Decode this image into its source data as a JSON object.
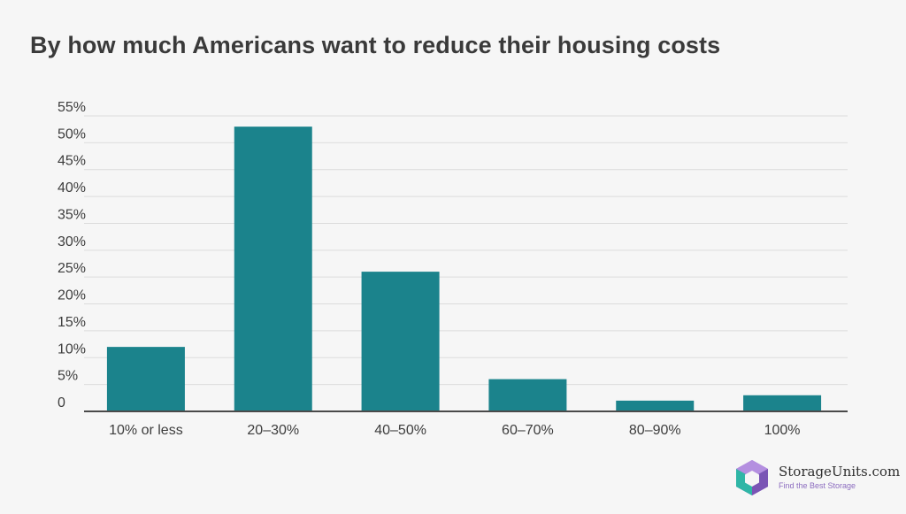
{
  "chart_data": {
    "type": "bar",
    "title": "By how much Americans want to reduce their housing costs",
    "categories": [
      "10% or less",
      "20–30%",
      "40–50%",
      "60–70%",
      "80–90%",
      "100%"
    ],
    "values": [
      12,
      53,
      26,
      6,
      2,
      3
    ],
    "xlabel": "",
    "ylabel": "",
    "ylim": [
      0,
      55
    ],
    "yticks": [
      "0",
      "5%",
      "10%",
      "15%",
      "20%",
      "25%",
      "30%",
      "35%",
      "40%",
      "45%",
      "50%",
      "55%"
    ],
    "grid": true,
    "bar_color": "#1b838c"
  },
  "brand": {
    "name": "StorageUnits.com",
    "tagline": "Find the Best Storage"
  }
}
